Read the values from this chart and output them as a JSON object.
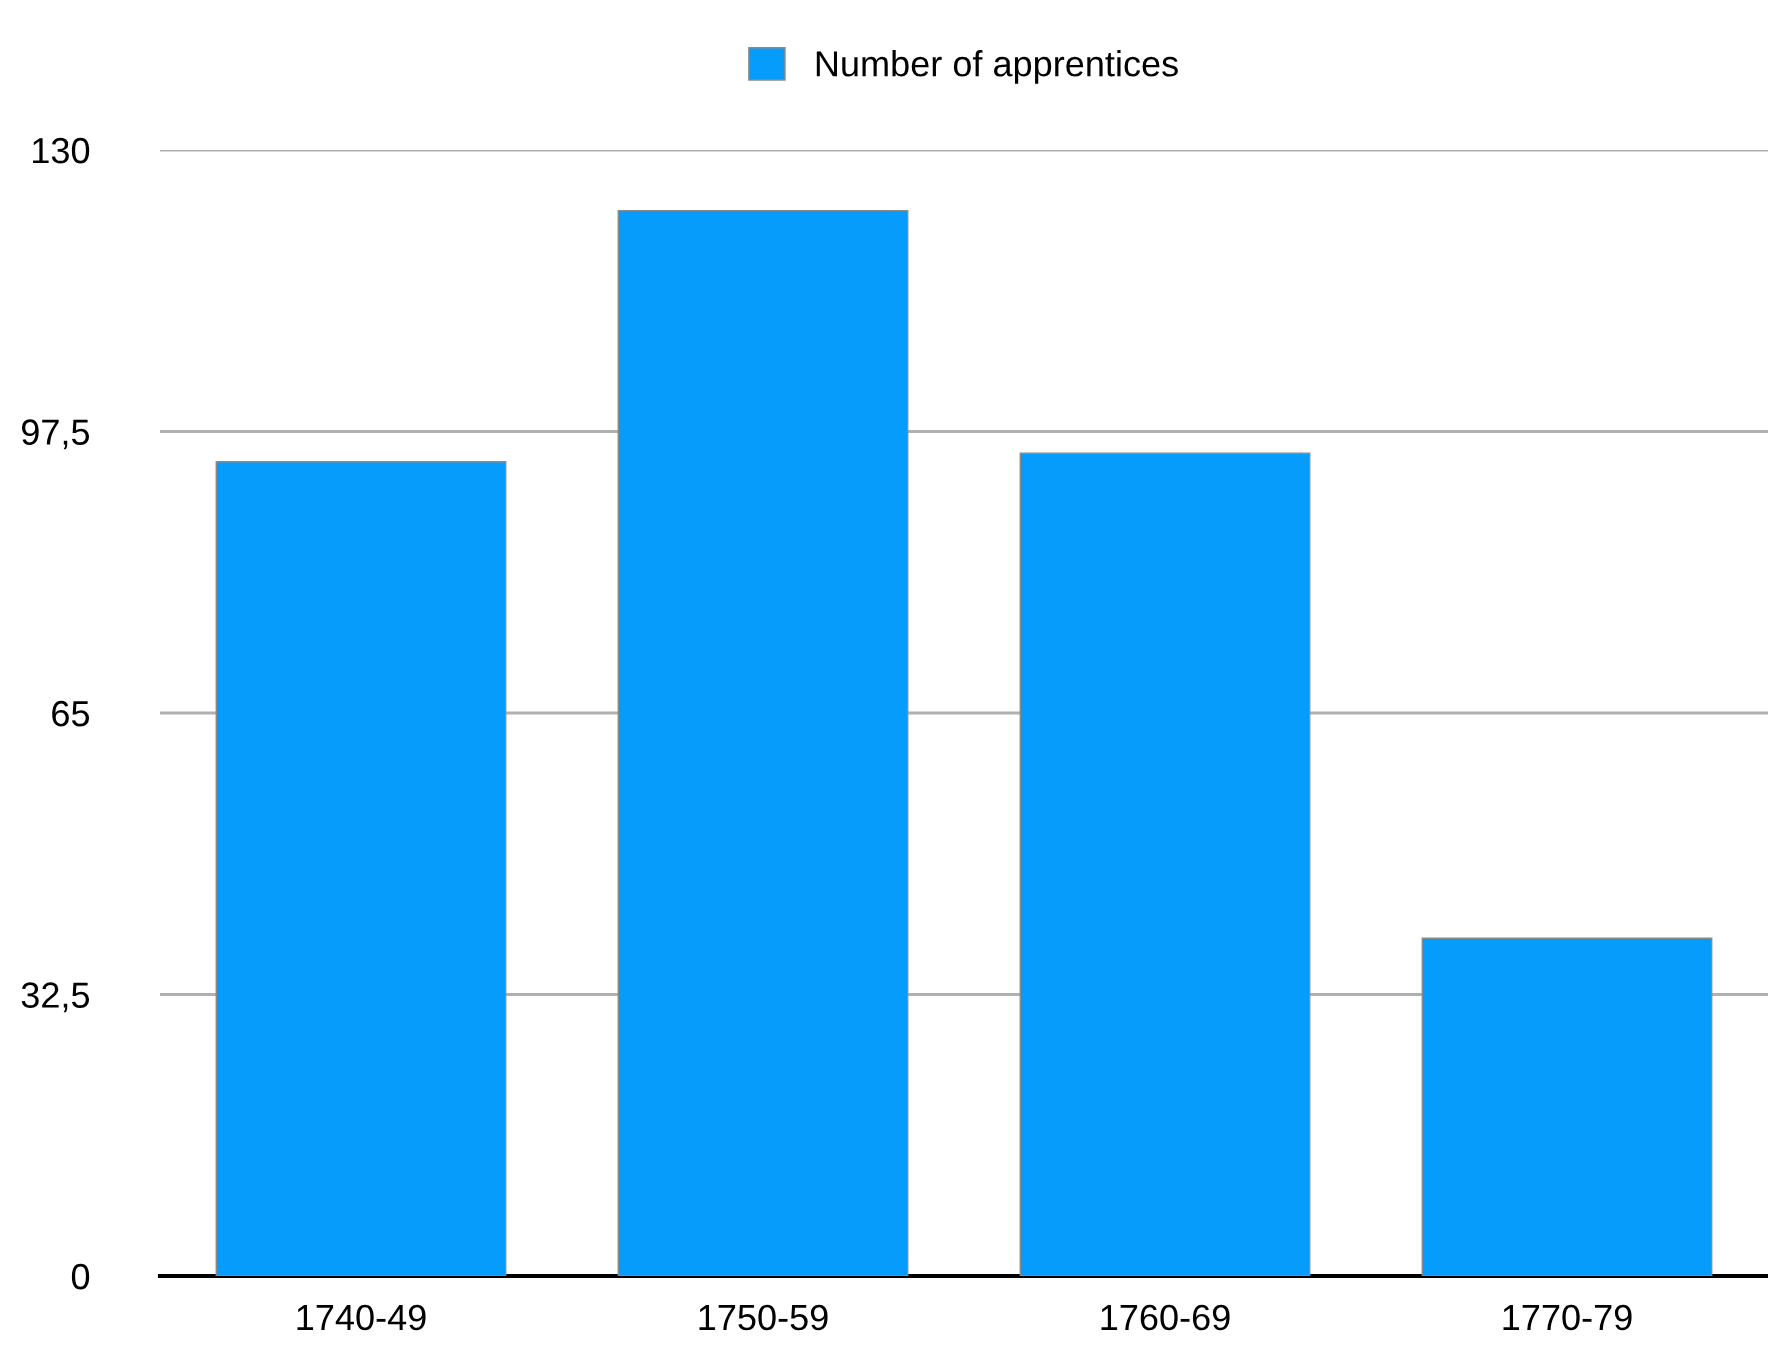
{
  "chart_data": {
    "type": "bar",
    "categories": [
      "1740-49",
      "1750-59",
      "1760-69",
      "1770-79"
    ],
    "series": [
      {
        "name": "Number of apprentices",
        "color": "#069cfb",
        "values": [
          94,
          123,
          95,
          39
        ]
      }
    ],
    "ylim": [
      0,
      130
    ],
    "yticks": [
      0,
      {
        "value": 32.5,
        "label": "32,5"
      },
      65,
      {
        "value": 97.5,
        "label": "97,5"
      },
      130
    ],
    "grid": "y",
    "legend": "top"
  }
}
